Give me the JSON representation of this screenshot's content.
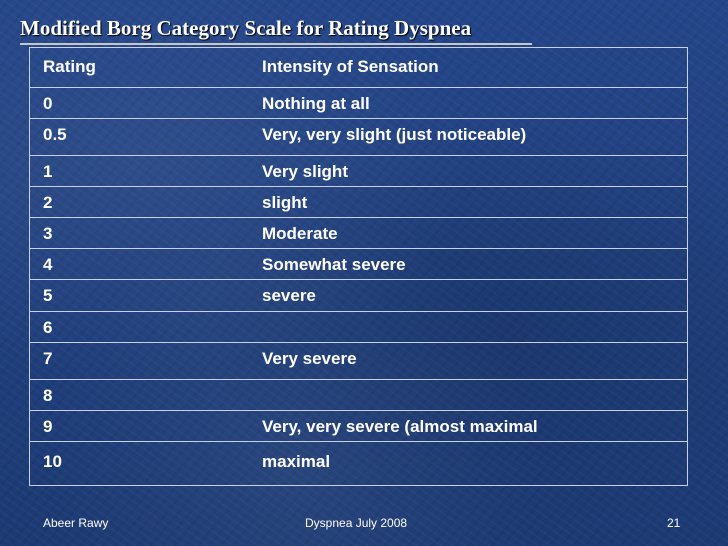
{
  "slide": {
    "title": "Modified Borg Category Scale for Rating Dyspnea",
    "table": {
      "headers": [
        "Rating",
        "Intensity of Sensation"
      ],
      "rows": [
        {
          "rating": "0",
          "intensity": "Nothing at all"
        },
        {
          "rating": "0.5",
          "intensity": "Very, very slight (just noticeable)"
        },
        {
          "rating": "1",
          "intensity": "Very slight"
        },
        {
          "rating": "2",
          "intensity": "slight"
        },
        {
          "rating": "3",
          "intensity": "Moderate"
        },
        {
          "rating": "4",
          "intensity": "Somewhat severe"
        },
        {
          "rating": "5",
          "intensity": "severe"
        },
        {
          "rating": "6",
          "intensity": ""
        },
        {
          "rating": "7",
          "intensity": "Very severe"
        },
        {
          "rating": "8",
          "intensity": ""
        },
        {
          "rating": "9",
          "intensity": "Very, very severe (almost maximal"
        },
        {
          "rating": "10",
          "intensity": "maximal"
        }
      ]
    },
    "footer": {
      "author": "Abeer Rawy",
      "event": "Dyspnea July 2008",
      "page": "21"
    },
    "colors": {
      "background": "#1f3f7c",
      "text": "#ffffff",
      "rule": "#c9d1e0"
    }
  }
}
